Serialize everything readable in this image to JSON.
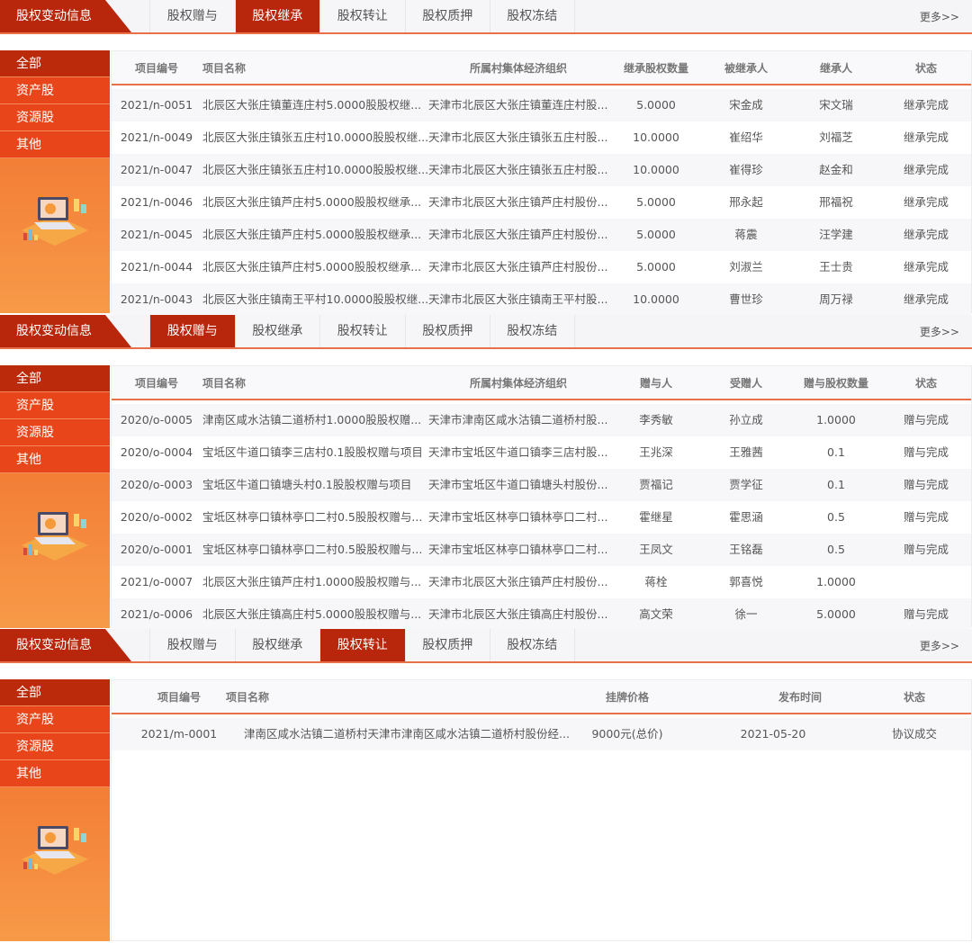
{
  "colors": {
    "brand_dark": "#b8260b",
    "brand": "#e8461a",
    "accent_line": "#e8704a"
  },
  "panels": [
    {
      "title": "股权变动信息",
      "tabs": [
        "股权赠与",
        "股权继承",
        "股权转让",
        "股权质押",
        "股权冻结"
      ],
      "active_tab": 1,
      "more": "更多>>",
      "sidebar": [
        "全部",
        "资产股",
        "资源股",
        "其他"
      ],
      "illustration_icon": "laptop-chart-illustration",
      "columns": [
        "项目编号",
        "项目名称",
        "所属村集体经济组织",
        "继承股权数量",
        "被继承人",
        "继承人",
        "状态"
      ],
      "rows": [
        [
          "2021/n-0051",
          "北辰区大张庄镇董连庄村5.0000股股权继...",
          "天津市北辰区大张庄镇董连庄村股...",
          "5.0000",
          "宋金成",
          "宋文瑞",
          "继承完成"
        ],
        [
          "2021/n-0049",
          "北辰区大张庄镇张五庄村10.0000股股权继...",
          "天津市北辰区大张庄镇张五庄村股...",
          "10.0000",
          "崔绍华",
          "刘福芝",
          "继承完成"
        ],
        [
          "2021/n-0047",
          "北辰区大张庄镇张五庄村10.0000股股权继...",
          "天津市北辰区大张庄镇张五庄村股...",
          "10.0000",
          "崔得珍",
          "赵金和",
          "继承完成"
        ],
        [
          "2021/n-0046",
          "北辰区大张庄镇芦庄村5.0000股股权继承...",
          "天津市北辰区大张庄镇芦庄村股份...",
          "5.0000",
          "邢永起",
          "邢福祝",
          "继承完成"
        ],
        [
          "2021/n-0045",
          "北辰区大张庄镇芦庄村5.0000股股权继承...",
          "天津市北辰区大张庄镇芦庄村股份...",
          "5.0000",
          "蒋震",
          "汪学建",
          "继承完成"
        ],
        [
          "2021/n-0044",
          "北辰区大张庄镇芦庄村5.0000股股权继承...",
          "天津市北辰区大张庄镇芦庄村股份...",
          "5.0000",
          "刘淑兰",
          "王士贵",
          "继承完成"
        ],
        [
          "2021/n-0043",
          "北辰区大张庄镇南王平村10.0000股股权继...",
          "天津市北辰区大张庄镇南王平村股...",
          "10.0000",
          "曹世珍",
          "周万禄",
          "继承完成"
        ]
      ]
    },
    {
      "title": "股权变动信息",
      "tabs": [
        "股权赠与",
        "股权继承",
        "股权转让",
        "股权质押",
        "股权冻结"
      ],
      "active_tab": 0,
      "more": "更多>>",
      "sidebar": [
        "全部",
        "资产股",
        "资源股",
        "其他"
      ],
      "illustration_icon": "laptop-chart-illustration",
      "columns": [
        "项目编号",
        "项目名称",
        "所属村集体经济组织",
        "赠与人",
        "受赠人",
        "赠与股权数量",
        "状态"
      ],
      "rows": [
        [
          "2020/o-0005",
          "津南区咸水沽镇二道桥村1.0000股股权赠...",
          "天津市津南区咸水沽镇二道桥村股...",
          "李秀敏",
          "孙立成",
          "1.0000",
          "赠与完成"
        ],
        [
          "2020/o-0004",
          "宝坻区牛道口镇李三店村0.1股股权赠与项目",
          "天津市宝坻区牛道口镇李三店村股...",
          "王兆深",
          "王雅茜",
          "0.1",
          "赠与完成"
        ],
        [
          "2020/o-0003",
          "宝坻区牛道口镇塘头村0.1股股权赠与项目",
          "天津市宝坻区牛道口镇塘头村股份...",
          "贾福记",
          "贾学征",
          "0.1",
          "赠与完成"
        ],
        [
          "2020/o-0002",
          "宝坻区林亭口镇林亭口二村0.5股股权赠与...",
          "天津市宝坻区林亭口镇林亭口二村...",
          "霍继星",
          "霍思涵",
          "0.5",
          "赠与完成"
        ],
        [
          "2020/o-0001",
          "宝坻区林亭口镇林亭口二村0.5股股权赠与...",
          "天津市宝坻区林亭口镇林亭口二村...",
          "王凤文",
          "王铭磊",
          "0.5",
          "赠与完成"
        ],
        [
          "2021/o-0007",
          "北辰区大张庄镇芦庄村1.0000股股权赠与...",
          "天津市北辰区大张庄镇芦庄村股份...",
          "蒋栓",
          "郭喜悦",
          "1.0000",
          ""
        ],
        [
          "2021/o-0006",
          "北辰区大张庄镇高庄村5.0000股股权赠与...",
          "天津市北辰区大张庄镇高庄村股份...",
          "高文荣",
          "徐一",
          "5.0000",
          "赠与完成"
        ]
      ]
    },
    {
      "title": "股权变动信息",
      "tabs": [
        "股权赠与",
        "股权继承",
        "股权转让",
        "股权质押",
        "股权冻结"
      ],
      "active_tab": 2,
      "more": "更多>>",
      "sidebar": [
        "全部",
        "资产股",
        "资源股",
        "其他"
      ],
      "illustration_icon": "laptop-chart-illustration",
      "columns": [
        "项目编号",
        "项目名称",
        "挂牌价格",
        "发布时间",
        "状态"
      ],
      "rows": [
        [
          "2021/m-0001",
          "津南区咸水沽镇二道桥村天津市津南区咸水沽镇二道桥村股份经...",
          "9000元(总价)",
          "2021-05-20",
          "协议成交"
        ]
      ]
    }
  ]
}
